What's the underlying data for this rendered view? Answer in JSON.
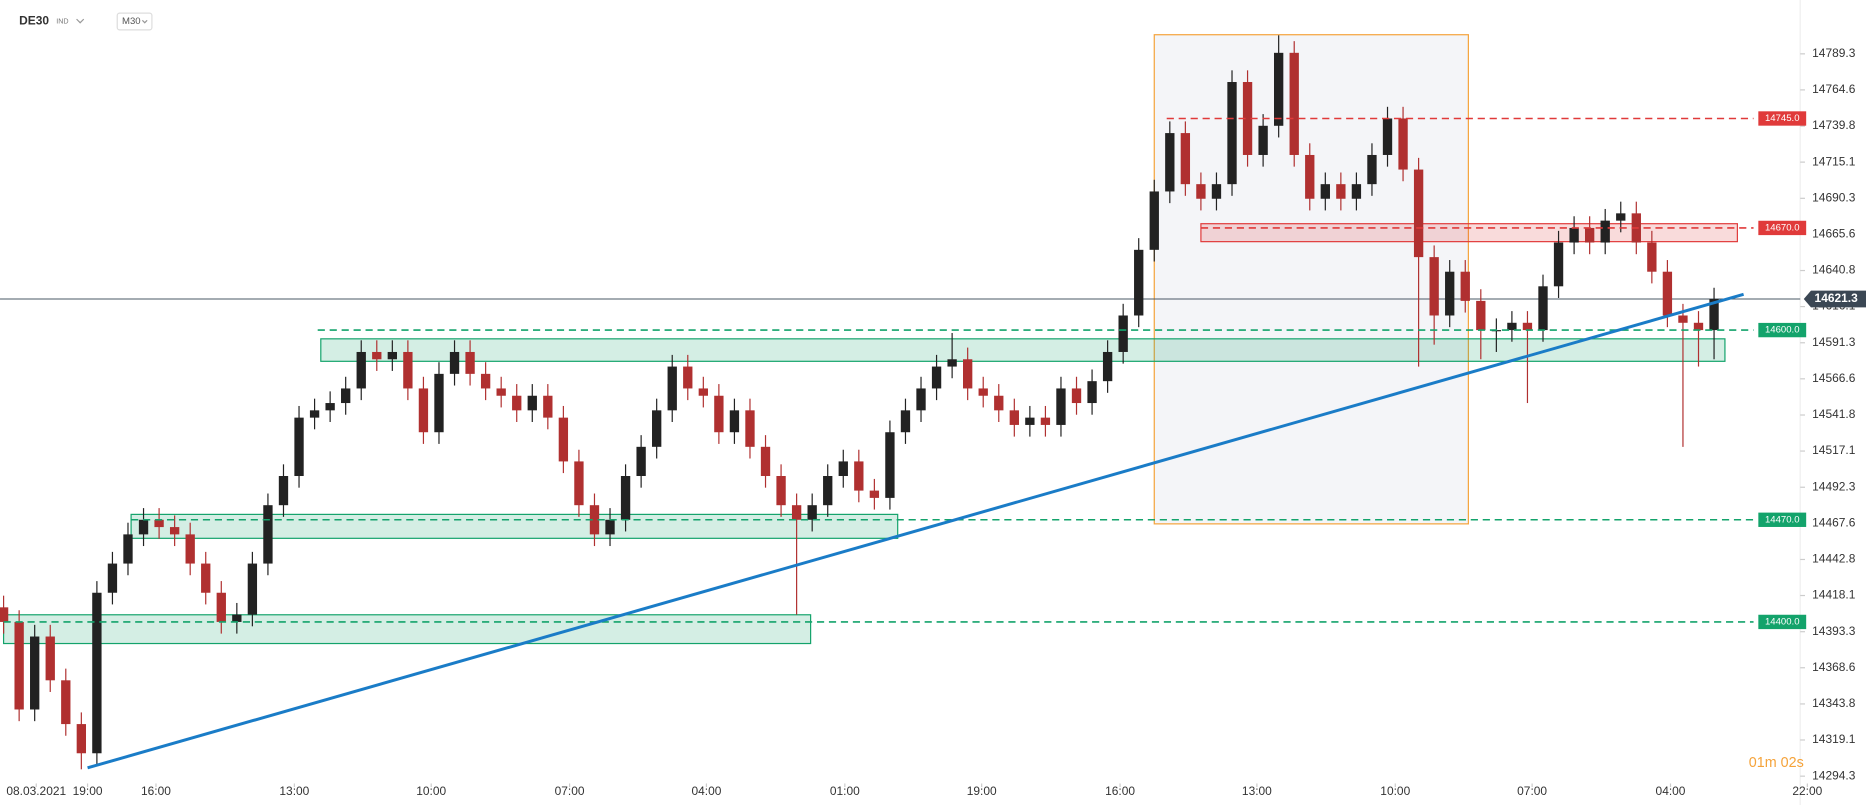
{
  "chart_data": {
    "type": "candlestick",
    "header": {
      "symbol": "DE30",
      "market": "IND",
      "interval": "M30"
    },
    "timer": "01m 02s",
    "colors": {
      "up": "#222222",
      "down": "#b03030"
    },
    "open": [
      14410,
      14400,
      14340,
      14390,
      14360,
      14330,
      14310,
      14420,
      14440,
      14460,
      14470,
      14465,
      14460,
      14440,
      14420,
      14400,
      14405,
      14440,
      14480,
      14500,
      14540,
      14545,
      14550,
      14560,
      14585,
      14580,
      14585,
      14560,
      14530,
      14570,
      14585,
      14570,
      14560,
      14555,
      14545,
      14555,
      14540,
      14510,
      14480,
      14460,
      14470,
      14500,
      14520,
      14545,
      14575,
      14560,
      14555,
      14530,
      14545,
      14520,
      14500,
      14480,
      14470,
      14480,
      14500,
      14510,
      14490,
      14485,
      14530,
      14545,
      14560,
      14575,
      14580,
      14560,
      14555,
      14545,
      14535,
      14540,
      14535,
      14560,
      14550,
      14565,
      14585,
      14610,
      14655,
      14695,
      14735,
      14700,
      14690,
      14700,
      14770,
      14720,
      14740,
      14790,
      14720,
      14690,
      14700,
      14690,
      14700,
      14720,
      14745,
      14710,
      14650,
      14610,
      14640,
      14620,
      14600,
      14600,
      14605,
      14600,
      14630,
      14660,
      14670,
      14660,
      14675,
      14680,
      14660,
      14640,
      14610,
      14605,
      14600
    ],
    "high": [
      14418,
      14408,
      14398,
      14398,
      14368,
      14338,
      14428,
      14448,
      14468,
      14478,
      14478,
      14473,
      14468,
      14448,
      14428,
      14413,
      14448,
      14488,
      14508,
      14548,
      14553,
      14558,
      14568,
      14593,
      14593,
      14593,
      14593,
      14568,
      14578,
      14593,
      14593,
      14578,
      14568,
      14563,
      14563,
      14563,
      14548,
      14518,
      14488,
      14478,
      14508,
      14528,
      14553,
      14583,
      14583,
      14568,
      14563,
      14553,
      14553,
      14528,
      14508,
      14488,
      14488,
      14508,
      14518,
      14518,
      14498,
      14538,
      14553,
      14568,
      14583,
      14598,
      14588,
      14568,
      14563,
      14553,
      14548,
      14548,
      14568,
      14568,
      14573,
      14593,
      14618,
      14663,
      14703,
      14743,
      14743,
      14708,
      14708,
      14778,
      14778,
      14748,
      14802,
      14798,
      14728,
      14708,
      14708,
      14708,
      14728,
      14753,
      14753,
      14718,
      14658,
      14648,
      14648,
      14628,
      14608,
      14613,
      14613,
      14638,
      14668,
      14678,
      14678,
      14683,
      14688,
      14688,
      14668,
      14648,
      14618,
      14613,
      14629
    ],
    "low": [
      14392,
      14332,
      14332,
      14352,
      14322,
      14299,
      14302,
      14412,
      14432,
      14452,
      14457,
      14452,
      14432,
      14412,
      14392,
      14392,
      14397,
      14432,
      14472,
      14492,
      14532,
      14537,
      14542,
      14552,
      14572,
      14572,
      14552,
      14522,
      14522,
      14562,
      14562,
      14552,
      14547,
      14537,
      14537,
      14532,
      14502,
      14472,
      14452,
      14452,
      14462,
      14492,
      14512,
      14537,
      14552,
      14547,
      14522,
      14522,
      14512,
      14492,
      14472,
      14405,
      14462,
      14472,
      14492,
      14482,
      14477,
      14477,
      14522,
      14537,
      14552,
      14567,
      14552,
      14547,
      14537,
      14527,
      14527,
      14527,
      14527,
      14542,
      14542,
      14557,
      14577,
      14602,
      14647,
      14687,
      14692,
      14682,
      14682,
      14692,
      14712,
      14712,
      14732,
      14712,
      14682,
      14682,
      14682,
      14682,
      14692,
      14712,
      14702,
      14575,
      14590,
      14602,
      14612,
      14580,
      14585,
      14592,
      14550,
      14592,
      14622,
      14652,
      14652,
      14652,
      14667,
      14652,
      14632,
      14602,
      14520,
      14575,
      14580
    ],
    "close": [
      14400,
      14340,
      14390,
      14360,
      14330,
      14310,
      14420,
      14440,
      14460,
      14470,
      14465,
      14460,
      14440,
      14420,
      14400,
      14405,
      14440,
      14480,
      14500,
      14540,
      14545,
      14550,
      14560,
      14585,
      14580,
      14585,
      14560,
      14530,
      14570,
      14585,
      14570,
      14560,
      14555,
      14545,
      14555,
      14540,
      14510,
      14480,
      14460,
      14470,
      14500,
      14520,
      14545,
      14575,
      14560,
      14555,
      14530,
      14545,
      14520,
      14500,
      14480,
      14470,
      14480,
      14500,
      14510,
      14490,
      14485,
      14530,
      14545,
      14560,
      14575,
      14580,
      14560,
      14555,
      14545,
      14535,
      14540,
      14535,
      14560,
      14550,
      14565,
      14585,
      14610,
      14655,
      14695,
      14735,
      14700,
      14690,
      14700,
      14770,
      14720,
      14740,
      14790,
      14720,
      14690,
      14700,
      14690,
      14700,
      14720,
      14745,
      14710,
      14650,
      14610,
      14640,
      14620,
      14600,
      14600,
      14605,
      14600,
      14630,
      14660,
      14670,
      14660,
      14675,
      14680,
      14660,
      14640,
      14610,
      14605,
      14600,
      14621.3
    ],
    "xlim": [
      -0.23,
      115.54
    ],
    "ylim": [
      14289.3,
      14826.2
    ],
    "xticks": [
      {
        "value": 2.1,
        "label": "08.03.2021"
      },
      {
        "value": 5.4,
        "label": "19:00"
      },
      {
        "value": 9.8,
        "label": "16:00"
      },
      {
        "value": 18.7,
        "label": "13:00"
      },
      {
        "value": 27.5,
        "label": "10:00"
      },
      {
        "value": 36.4,
        "label": "07:00"
      },
      {
        "value": 45.2,
        "label": "04:00"
      },
      {
        "value": 54.1,
        "label": "01:00"
      },
      {
        "value": 62.9,
        "label": "19:00"
      },
      {
        "value": 71.8,
        "label": "16:00"
      },
      {
        "value": 80.6,
        "label": "13:00"
      },
      {
        "value": 89.5,
        "label": "10:00"
      },
      {
        "value": 98.3,
        "label": "07:00"
      },
      {
        "value": 107.2,
        "label": "04:00"
      },
      {
        "value": 116.0,
        "label": "22:00"
      }
    ],
    "yticks": [
      14789.3,
      14764.6,
      14739.8,
      14715.1,
      14690.3,
      14665.6,
      14640.8,
      14616.1,
      14591.3,
      14566.6,
      14541.8,
      14517.1,
      14492.3,
      14467.6,
      14442.8,
      14418.1,
      14393.3,
      14368.6,
      14343.8,
      14319.1,
      14294.3
    ],
    "levels": [
      {
        "value": 14745.0,
        "label": "14745.0",
        "start": 74.8,
        "color": "#e03a3a"
      },
      {
        "value": 14670.0,
        "label": "14670.0",
        "start": 77.0,
        "color": "#e03a3a"
      },
      {
        "value": 14600.0,
        "label": "14600.0",
        "start": 20.2,
        "color": "#13a36b"
      },
      {
        "value": 14470.0,
        "label": "14470.0",
        "start": 8.2,
        "color": "#13a36b"
      },
      {
        "value": 14400.0,
        "label": "14400.0",
        "start": 0,
        "color": "#13a36b"
      }
    ],
    "zones": [
      {
        "x": [
          20.4,
          110.7
        ],
        "y": [
          14578.6,
          14594.0
        ],
        "color": "#13a36b"
      },
      {
        "x": [
          8.2,
          57.5
        ],
        "y": [
          14457.3,
          14473.7
        ],
        "color": "#13a36b"
      },
      {
        "x": [
          0,
          51.9
        ],
        "y": [
          14385.2,
          14404.9
        ],
        "color": "#13a36b"
      },
      {
        "x": [
          77.0,
          111.5
        ],
        "y": [
          14660.6,
          14672.9
        ],
        "color": "#e03a3a"
      }
    ],
    "box": {
      "x": [
        74.0,
        94.2
      ],
      "y": [
        14467.2,
        14802.4
      ],
      "color": "#f5a33a"
    },
    "trendline": {
      "x": [
        5.4,
        111.9
      ],
      "y": [
        14300,
        14624.5
      ],
      "color": "#1a7cc7"
    },
    "last_price": 14621.3
  }
}
